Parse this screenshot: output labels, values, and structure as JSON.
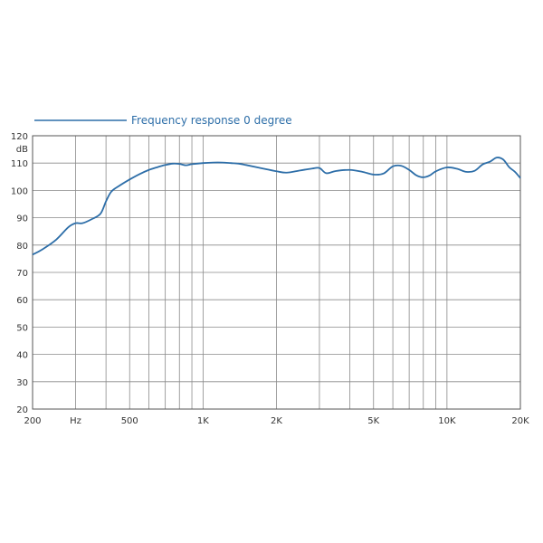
{
  "chart_data": {
    "type": "line",
    "title": "",
    "xlabel": "",
    "ylabel": "dB",
    "x_scale": "log",
    "xlim": [
      200,
      20000
    ],
    "ylim": [
      20,
      120
    ],
    "grid": true,
    "legend_placement": "top-left",
    "x_tick_labels": [
      {
        "value": 200,
        "label": "200"
      },
      {
        "value": 300,
        "label": "Hz"
      },
      {
        "value": 500,
        "label": "500"
      },
      {
        "value": 1000,
        "label": "1K"
      },
      {
        "value": 2000,
        "label": "2K"
      },
      {
        "value": 5000,
        "label": "5K"
      },
      {
        "value": 10000,
        "label": "10K"
      },
      {
        "value": 20000,
        "label": "20K"
      }
    ],
    "x_gridlines": [
      200,
      300,
      400,
      500,
      600,
      700,
      800,
      900,
      1000,
      2000,
      3000,
      4000,
      5000,
      6000,
      7000,
      8000,
      9000,
      10000,
      20000
    ],
    "y_ticks": [
      20,
      30,
      40,
      50,
      60,
      70,
      80,
      90,
      100,
      110,
      120
    ],
    "series": [
      {
        "name": "Frequency response 0 degree",
        "color": "#2d6ea8",
        "x": [
          200,
          220,
          250,
          280,
          300,
          320,
          350,
          380,
          400,
          420,
          450,
          500,
          550,
          600,
          650,
          700,
          750,
          800,
          850,
          900,
          1000,
          1100,
          1200,
          1300,
          1400,
          1500,
          1700,
          2000,
          2200,
          2500,
          2800,
          3000,
          3200,
          3500,
          4000,
          4500,
          5000,
          5500,
          6000,
          6500,
          7000,
          7500,
          8000,
          8500,
          9000,
          10000,
          11000,
          12000,
          13000,
          14000,
          15000,
          16000,
          17000,
          18000,
          19000,
          20000
        ],
        "y": [
          76.5,
          78.5,
          82,
          86.5,
          88,
          88,
          89.5,
          91.5,
          96,
          99.5,
          101.5,
          104,
          106,
          107.5,
          108.5,
          109.3,
          109.8,
          109.7,
          109.2,
          109.6,
          110,
          110.2,
          110.2,
          110,
          109.8,
          109.3,
          108.3,
          107,
          106.5,
          107.3,
          108,
          108.2,
          106.3,
          107.1,
          107.5,
          106.8,
          105.8,
          106.2,
          108.8,
          109,
          107.5,
          105.5,
          104.8,
          105.5,
          107,
          108.4,
          107.9,
          106.8,
          107.2,
          109.5,
          110.5,
          112,
          111.3,
          108.5,
          106.8,
          104.5
        ]
      }
    ]
  }
}
